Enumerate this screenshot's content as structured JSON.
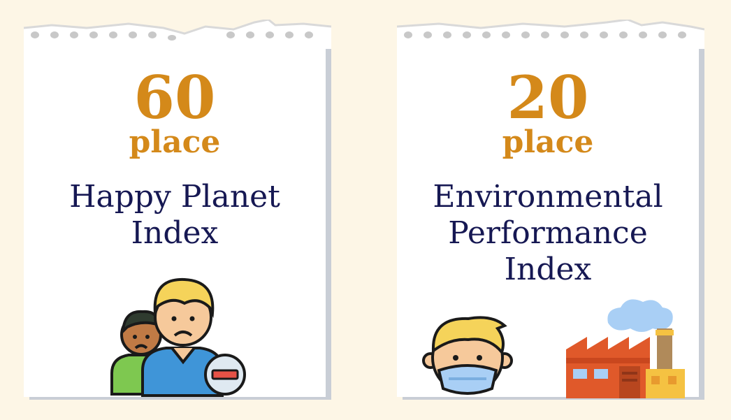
{
  "cards": [
    {
      "number": "60",
      "place_label": "place",
      "index_name": "Happy Planet Index",
      "illustration": "sad-people-minus-icon"
    },
    {
      "number": "20",
      "place_label": "place",
      "index_name": "Environmental Performance Index",
      "illustration": "mask-and-factory-icon"
    }
  ],
  "colors": {
    "background": "#fdf6e6",
    "rank": "#d4891a",
    "index_text": "#161853",
    "paper": "#ffffff",
    "shadow": "#c9ced6"
  }
}
